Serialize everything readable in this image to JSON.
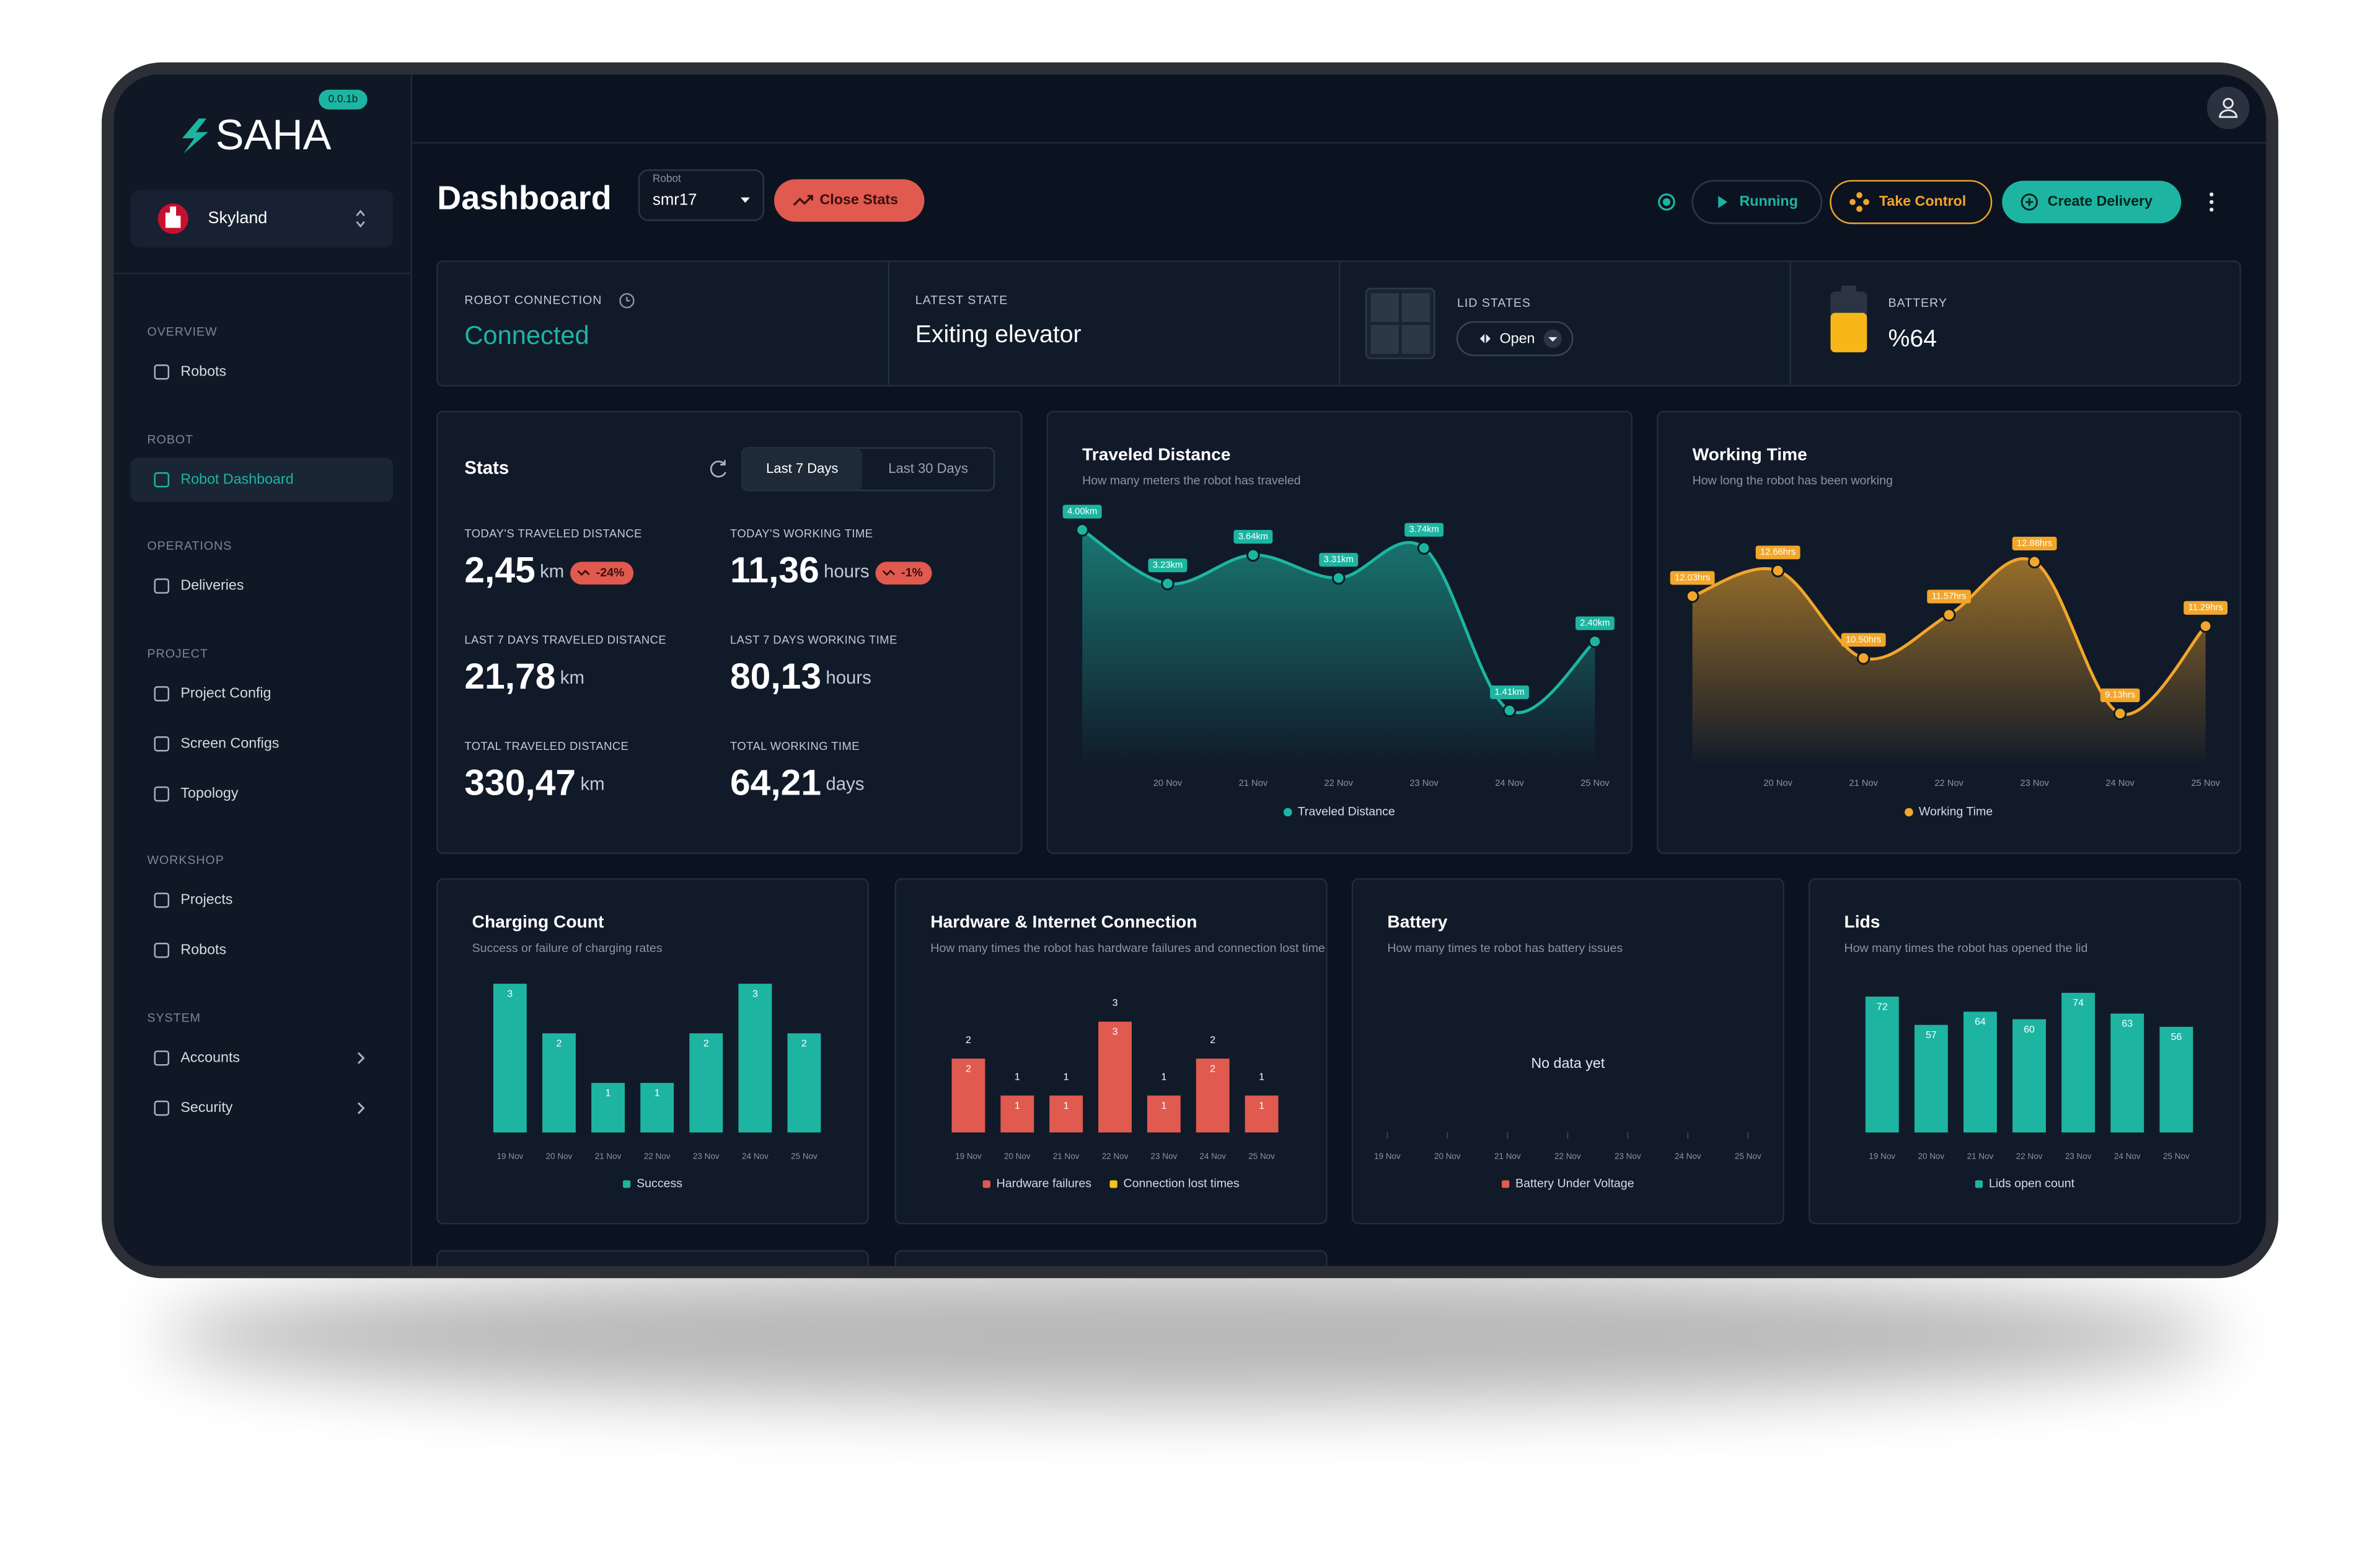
{
  "sidebar": {
    "version": "0.0.1b",
    "brand": "SAHA",
    "organization": "Skyland",
    "sections": [
      {
        "title": "OVERVIEW",
        "items": [
          {
            "label": "Robots"
          }
        ]
      },
      {
        "title": "ROBOT",
        "items": [
          {
            "label": "Robot Dashboard",
            "active": true
          }
        ]
      },
      {
        "title": "OPERATIONS",
        "items": [
          {
            "label": "Deliveries"
          }
        ]
      },
      {
        "title": "PROJECT",
        "items": [
          {
            "label": "Project Config"
          },
          {
            "label": "Screen Configs"
          },
          {
            "label": "Topology"
          }
        ]
      },
      {
        "title": "WORKSHOP",
        "items": [
          {
            "label": "Projects"
          },
          {
            "label": "Robots"
          }
        ]
      },
      {
        "title": "SYSTEM",
        "items": [
          {
            "label": "Accounts",
            "expandable": true
          },
          {
            "label": "Security",
            "expandable": true
          }
        ]
      }
    ]
  },
  "header": {
    "title": "Dashboard",
    "robot_label": "Robot",
    "robot": "smr17",
    "close_stats": "Close Stats",
    "status": "Running",
    "take_control": "Take Control",
    "create_delivery": "Create Delivery"
  },
  "status": [
    {
      "label": "ROBOT CONNECTION",
      "value": "Connected"
    },
    {
      "label": "LATEST STATE",
      "value": "Exiting elevator"
    },
    {
      "label": "LID STATES",
      "value": "Open"
    },
    {
      "label": "BATTERY",
      "value": "%64"
    }
  ],
  "stats": {
    "title": "Stats",
    "tabs": [
      "Last 7 Days",
      "Last 30 Days"
    ],
    "items": [
      {
        "label": "TODAY'S TRAVELED DISTANCE",
        "value": "2,45",
        "unit": "km",
        "change": "-24%"
      },
      {
        "label": "TODAY'S WORKING TIME",
        "value": "11,36",
        "unit": "hours",
        "change": "-1%"
      },
      {
        "label": "LAST 7 DAYS TRAVELED DISTANCE",
        "value": "21,78",
        "unit": "km"
      },
      {
        "label": "LAST 7 DAYS WORKING TIME",
        "value": "80,13",
        "unit": "hours"
      },
      {
        "label": "TOTAL TRAVELED DISTANCE",
        "value": "330,47",
        "unit": "km"
      },
      {
        "label": "TOTAL WORKING TIME",
        "value": "64,21",
        "unit": "days"
      }
    ]
  },
  "chart_data": [
    {
      "type": "line",
      "title": "Traveled Distance",
      "subtitle": "How many meters the robot has traveled",
      "categories": [
        null,
        "20 Nov",
        "21 Nov",
        "22 Nov",
        "23 Nov",
        "24 Nov",
        "25 Nov"
      ],
      "series": [
        {
          "name": "Traveled Distance",
          "color": "#1db5a2",
          "values": [
            4.0,
            3.23,
            3.64,
            3.31,
            3.74,
            1.41,
            2.4
          ],
          "value_labels": [
            "4.00km",
            "3.23km",
            "3.64km",
            "3.31km",
            "3.74km",
            "1.41km",
            "2.40km"
          ]
        }
      ]
    },
    {
      "type": "line",
      "title": "Working Time",
      "subtitle": "How long the robot has been working",
      "categories": [
        null,
        "20 Nov",
        "21 Nov",
        "22 Nov",
        "23 Nov",
        "24 Nov",
        "25 Nov"
      ],
      "series": [
        {
          "name": "Working Time",
          "color": "#f2a62a",
          "values": [
            12.03,
            12.66,
            10.5,
            11.57,
            12.88,
            9.13,
            11.29
          ],
          "value_labels": [
            "12.03hrs",
            "12.66hrs",
            "10.50hrs",
            "11.57hrs",
            "12.88hrs",
            "9.13hrs",
            "11.29hrs"
          ]
        }
      ]
    },
    {
      "type": "bar",
      "title": "Charging Count",
      "subtitle": "Success or failure of charging rates",
      "categories": [
        "19 Nov",
        "20 Nov",
        "21 Nov",
        "22 Nov",
        "23 Nov",
        "24 Nov",
        "25 Nov"
      ],
      "series": [
        {
          "name": "Success",
          "color": "#1db5a2",
          "values": [
            3,
            2,
            1,
            1,
            2,
            3,
            2
          ]
        }
      ]
    },
    {
      "type": "bar",
      "title": "Hardware & Internet Connection",
      "subtitle": "How many times the robot has hardware failures and connection lost times",
      "categories": [
        "19 Nov",
        "20 Nov",
        "21 Nov",
        "22 Nov",
        "23 Nov",
        "24 Nov",
        "25 Nov"
      ],
      "series": [
        {
          "name": "Hardware failures",
          "color": "#e05a4f",
          "values": [
            2,
            1,
            1,
            3,
            1,
            2,
            1
          ]
        },
        {
          "name": "Connection lost times",
          "color": "#f5c518",
          "values": [
            0,
            0,
            0,
            0,
            0,
            0,
            0
          ]
        }
      ]
    },
    {
      "type": "bar",
      "title": "Battery",
      "subtitle": "How many times te robot has battery issues",
      "categories": [
        "19 Nov",
        "20 Nov",
        "21 Nov",
        "22 Nov",
        "23 Nov",
        "24 Nov",
        "25 Nov"
      ],
      "series": [
        {
          "name": "Battery Under Voltage",
          "color": "#e05a4f",
          "values": [
            null,
            null,
            null,
            null,
            null,
            null,
            null
          ]
        }
      ],
      "empty_text": "No data yet"
    },
    {
      "type": "bar",
      "title": "Lids",
      "subtitle": "How many times the robot has opened the lid",
      "categories": [
        "19 Nov",
        "20 Nov",
        "21 Nov",
        "22 Nov",
        "23 Nov",
        "24 Nov",
        "25 Nov"
      ],
      "series": [
        {
          "name": "Lids open count",
          "color": "#1db5a2",
          "values": [
            72,
            57,
            64,
            60,
            74,
            63,
            56
          ]
        }
      ]
    }
  ]
}
